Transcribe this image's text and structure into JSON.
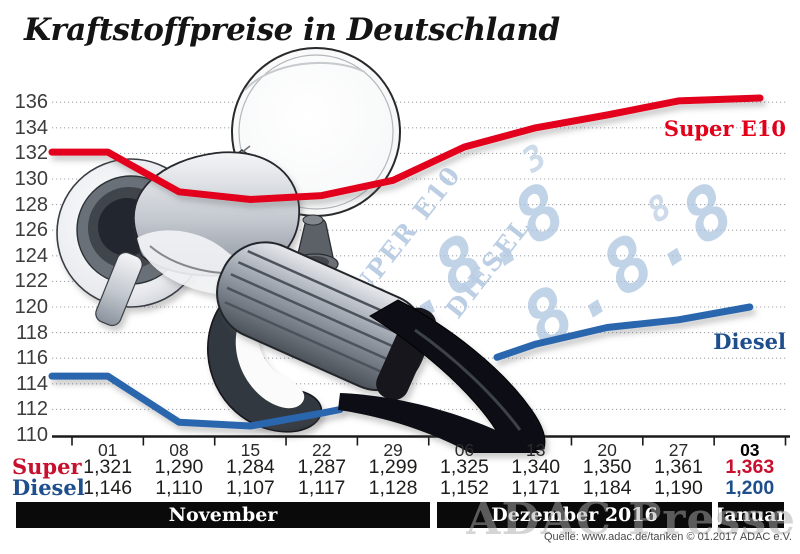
{
  "title": "Kraftstoffpreise in Deutschland",
  "legend": {
    "super": "Super E10",
    "diesel": "Diesel"
  },
  "table": {
    "row_labels": [
      "Super",
      "Diesel"
    ]
  },
  "months": [
    "November",
    "Dezember 2016",
    "Januar"
  ],
  "source": "Quelle: www.adac.de/tanken  © 01.2017  ADAC e.V.",
  "watermark": "ADAC Presse",
  "pump_display": {
    "label_super": "SUPER E10",
    "label_diesel": "DIESEL",
    "digits": "8.8.8",
    "sup_digit_1": "3",
    "sup_digit_2": "8"
  },
  "colors": {
    "super_line": "#e2001a",
    "diesel_line": "#2a66ad",
    "super_text": "#c8102e",
    "diesel_text": "#1f4e8c",
    "grid": "#a3a7ad",
    "axis": "#1a1a1a",
    "band_bg": "#0a0a0a",
    "ghost_blue": "#a9c2de"
  },
  "chart_data": {
    "type": "line",
    "title": "Kraftstoffpreise in Deutschland",
    "x_dates": [
      "01",
      "08",
      "15",
      "22",
      "29",
      "06",
      "13",
      "20",
      "27",
      "03"
    ],
    "month_spans": [
      {
        "label": "November",
        "date_cols": [
          0,
          4
        ]
      },
      {
        "label": "Dezember 2016",
        "date_cols": [
          5,
          8
        ]
      },
      {
        "label": "Januar",
        "date_cols": [
          9,
          9
        ]
      }
    ],
    "yticks": [
      136,
      134,
      132,
      130,
      128,
      126,
      124,
      122,
      120,
      118,
      116,
      114,
      112,
      110
    ],
    "ylim": [
      110,
      136
    ],
    "grid": "dotted-horizontal",
    "legend_position": "inline-right",
    "series": [
      {
        "name": "Super E10",
        "row_label": "Super",
        "color": "#e2001a",
        "values_cents": [
          132.1,
          129.0,
          128.4,
          128.7,
          129.9,
          132.5,
          134.0,
          135.0,
          136.1,
          136.3
        ],
        "table_values": [
          "1,321",
          "1,290",
          "1,284",
          "1,287",
          "1,299",
          "1,325",
          "1,340",
          "1,350",
          "1,361",
          "1,363"
        ]
      },
      {
        "name": "Diesel",
        "row_label": "Diesel",
        "color": "#2a66ad",
        "values_cents": [
          114.6,
          111.0,
          110.7,
          111.7,
          112.8,
          115.2,
          117.1,
          118.4,
          119.0,
          120.0
        ],
        "table_values": [
          "1,146",
          "1,110",
          "1,107",
          "1,117",
          "1,128",
          "1,152",
          "1,171",
          "1,184",
          "1,190",
          "1,200"
        ]
      }
    ]
  }
}
